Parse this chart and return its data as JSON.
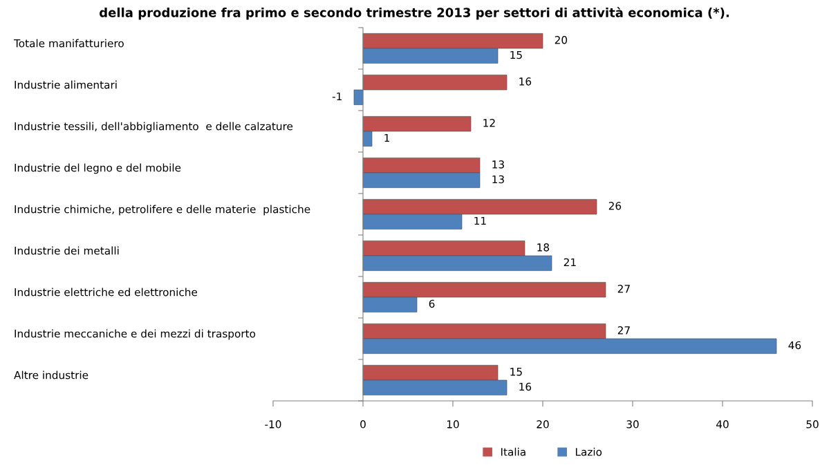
{
  "chart_data": {
    "type": "bar",
    "orientation": "horizontal",
    "title": "della produzione fra primo e secondo trimestre 2013 per settori di attività economica (*).",
    "categories": [
      "Totale manifatturiero",
      "Industrie alimentari",
      "Industrie tessili, dell'abbigliamento  e delle calzature",
      "Industrie del legno e del mobile",
      "Industrie chimiche, petrolifere e delle materie  plastiche",
      "Industrie dei metalli",
      "Industrie elettriche ed elettroniche",
      "Industrie meccaniche e dei mezzi di trasporto",
      "Altre industrie"
    ],
    "series": [
      {
        "name": "Italia",
        "color": "#c0504d",
        "values": [
          20,
          16,
          12,
          13,
          26,
          18,
          27,
          27,
          15
        ]
      },
      {
        "name": "Lazio",
        "color": "#4f81bd",
        "values": [
          15,
          -1,
          1,
          13,
          11,
          21,
          6,
          46,
          16
        ]
      }
    ],
    "xlim": [
      -10,
      50
    ],
    "xticks": [
      -10,
      0,
      10,
      20,
      30,
      40,
      50
    ],
    "data_labels": true,
    "legend": "bottom"
  }
}
